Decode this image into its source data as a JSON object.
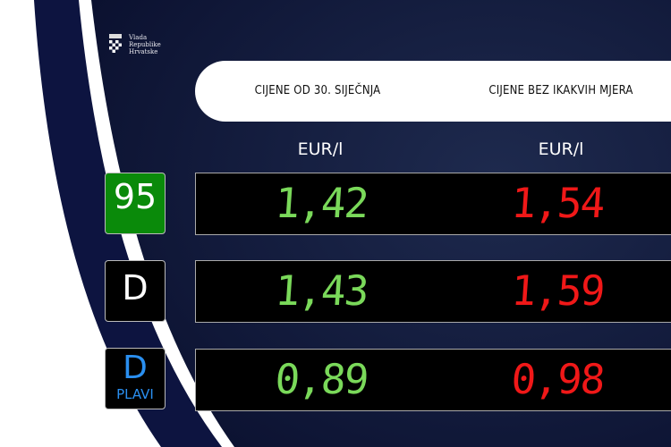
{
  "logo": {
    "lines": [
      "Vlada",
      "Republike",
      "Hrvatske"
    ]
  },
  "header": {
    "col1": "CIJENE OD 30. SIJEČNJA",
    "col2": "CIJENE BEZ IKAKVIH MJERA"
  },
  "units": {
    "col1": "EUR/l",
    "col2": "EUR/l"
  },
  "rows": [
    {
      "fuel": "95",
      "sub": "",
      "price_now": "1,42",
      "price_no_measures": "1,54",
      "badge_color": "#0a8a0a",
      "text_color": "#ffffff"
    },
    {
      "fuel": "D",
      "sub": "",
      "price_now": "1,43",
      "price_no_measures": "1,59",
      "badge_color": "#000000",
      "text_color": "#ffffff"
    },
    {
      "fuel": "D",
      "sub": "PLAVI",
      "price_now": "0,89",
      "price_no_measures": "0,98",
      "badge_color": "#000000",
      "text_color": "#2a8ff0"
    }
  ],
  "colors": {
    "navy": "#0d1440",
    "green": "#7ad95a",
    "red": "#f01818"
  }
}
